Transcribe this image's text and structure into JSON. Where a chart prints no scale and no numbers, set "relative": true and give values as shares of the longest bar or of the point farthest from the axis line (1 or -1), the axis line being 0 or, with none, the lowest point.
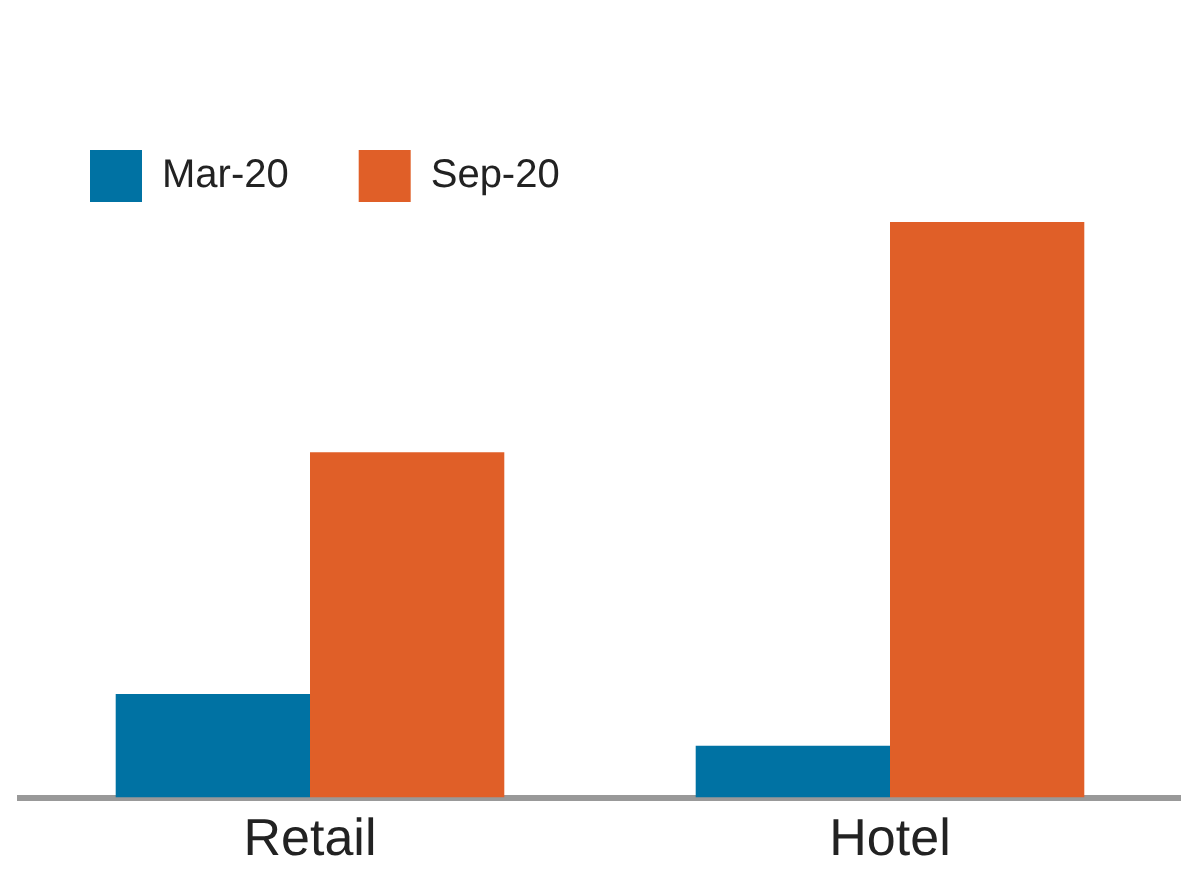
{
  "chart_data": {
    "type": "bar",
    "categories": [
      "Retail",
      "Hotel"
    ],
    "relative": true,
    "series": [
      {
        "name": "Mar-20",
        "color": "#0072a3",
        "values": [
          0.18,
          0.09
        ]
      },
      {
        "name": "Sep-20",
        "color": "#e05f28",
        "values": [
          0.6,
          1
        ]
      }
    ],
    "legend": "top left",
    "grid": false
  }
}
